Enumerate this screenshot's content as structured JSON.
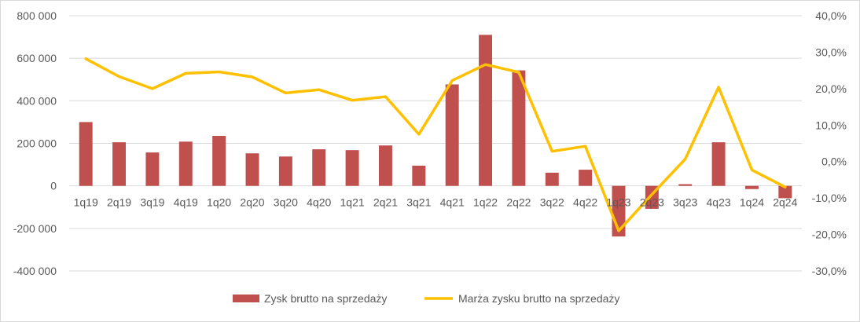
{
  "chart_data": {
    "type": "bar+line",
    "categories": [
      "1q19",
      "2q19",
      "3q19",
      "4q19",
      "1q20",
      "2q20",
      "3q20",
      "4q20",
      "1q21",
      "2q21",
      "3q21",
      "4q21",
      "1q22",
      "2q22",
      "3q22",
      "4q22",
      "1q23",
      "2q23",
      "3q23",
      "4q23",
      "1q24",
      "2q24"
    ],
    "series": [
      {
        "name": "Zysk brutto na sprzedaży",
        "type": "bar",
        "axis": "left",
        "color": "#c0504d",
        "values": [
          300000,
          205000,
          157000,
          208000,
          235000,
          153000,
          138000,
          172000,
          168000,
          190000,
          95000,
          477000,
          710000,
          543000,
          62000,
          76000,
          -238000,
          -108000,
          8000,
          205000,
          -15000,
          -58000
        ]
      },
      {
        "name": "Marża zysku brutto na sprzedaży",
        "type": "line",
        "axis": "right",
        "color": "#ffc000",
        "values": [
          28.2,
          23.3,
          20.0,
          24.2,
          24.6,
          23.2,
          18.8,
          19.7,
          16.8,
          17.8,
          7.5,
          22.2,
          26.6,
          24.5,
          2.8,
          4.2,
          -19.0,
          -9.0,
          0.7,
          20.4,
          -2.3,
          -7.0
        ]
      }
    ],
    "left_axis": {
      "ylim": [
        -400000,
        800000
      ],
      "ticks": [
        -400000,
        -200000,
        0,
        200000,
        400000,
        600000,
        800000
      ],
      "tick_labels": [
        "-400 000",
        "-200 000",
        "0",
        "200 000",
        "400 000",
        "600 000",
        "800 000"
      ]
    },
    "right_axis": {
      "ylim": [
        -30,
        40
      ],
      "ticks": [
        -30,
        -20,
        -10,
        0,
        10,
        20,
        30,
        40
      ],
      "tick_labels": [
        "-30,0%",
        "-20,0%",
        "-10,0%",
        "0,0%",
        "10,0%",
        "20,0%",
        "30,0%",
        "40,0%"
      ]
    },
    "grid": true,
    "legend_position": "bottom"
  }
}
